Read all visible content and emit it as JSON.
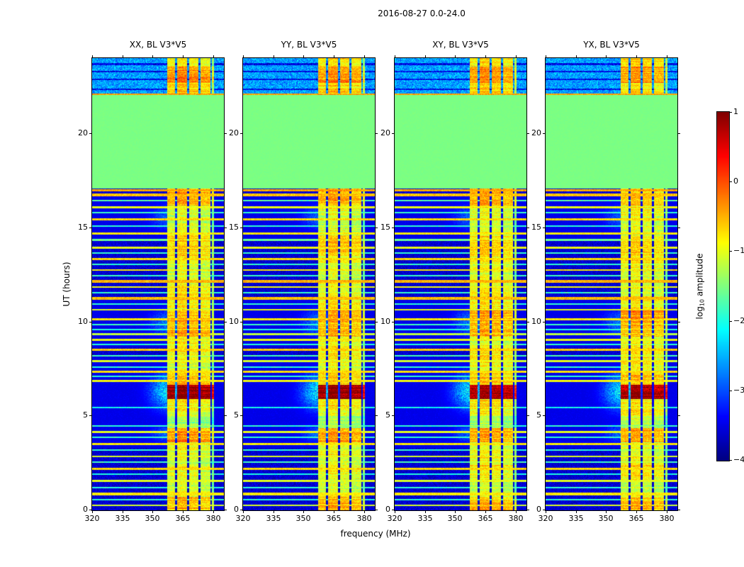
{
  "figure": {
    "title": "2016-08-27 0.0-24.0",
    "xlabel": "frequency (MHz)",
    "ylabel": "UT (hours)",
    "background": "#ffffff"
  },
  "chart_data": {
    "type": "heatmap",
    "title": "2016-08-27 0.0-24.0",
    "xlabel": "frequency (MHz)",
    "ylabel": "UT (hours)",
    "panels": [
      {
        "title": "XX, BL V3*V5",
        "seed": 101
      },
      {
        "title": "YY, BL V3*V5",
        "seed": 202
      },
      {
        "title": "XY, BL V3*V5",
        "seed": 303
      },
      {
        "title": "YX, BL V3*V5",
        "seed": 404
      }
    ],
    "x_axis": {
      "label": "frequency (MHz)",
      "min": 320,
      "max": 385,
      "ticks": [
        320,
        335,
        350,
        365,
        380
      ]
    },
    "y_axis": {
      "label": "UT (hours)",
      "min": 0,
      "max": 24,
      "ticks": [
        0,
        5,
        10,
        15,
        20
      ]
    },
    "colorbar": {
      "label": "log10 amplitude",
      "label_parts": {
        "prefix": "log",
        "sub": "10",
        "suffix": " amplitude"
      },
      "min": -4,
      "max": 1,
      "ticks": [
        1,
        0,
        -1,
        -2,
        -3,
        -4
      ],
      "colormap": "jet"
    },
    "model": {
      "background": {
        "level": -3.85,
        "noise": 0.5
      },
      "flagged_block": {
        "t0": 17.1,
        "t1": 22.05,
        "level": -1.52
      },
      "top_band": {
        "t0": 22.1,
        "t1": 24.0,
        "level": -2.6,
        "noise": 0.45,
        "dark_lines": [
          22.35,
          22.9,
          23.3,
          23.7
        ]
      },
      "rfi_columns": {
        "default_level": -1.05,
        "bands": [
          [
            357.2,
            361.0,
            0.0
          ],
          [
            362.0,
            366.8,
            0.15
          ],
          [
            367.8,
            372.6,
            0.05
          ],
          [
            373.6,
            378.4,
            -0.05
          ],
          [
            379.3,
            380.4,
            -0.5
          ]
        ],
        "time_profile": [
          [
            0.0,
            0.7,
            -0.7
          ],
          [
            0.7,
            1.6,
            -1.1
          ],
          [
            1.6,
            2.4,
            -0.9
          ],
          [
            2.4,
            3.6,
            -1.15
          ],
          [
            3.6,
            4.35,
            -0.45
          ],
          [
            4.35,
            5.0,
            -1.3
          ],
          [
            5.0,
            5.9,
            -1.0
          ],
          [
            5.9,
            6.65,
            0.8
          ],
          [
            6.65,
            7.3,
            -0.6
          ],
          [
            7.3,
            9.2,
            -1.05
          ],
          [
            9.2,
            10.6,
            -0.5
          ],
          [
            10.6,
            13.5,
            -1.0
          ],
          [
            13.5,
            14.6,
            -0.8
          ],
          [
            14.6,
            16.2,
            -1.05
          ],
          [
            16.2,
            17.1,
            -0.7
          ],
          [
            22.05,
            22.7,
            -0.85
          ],
          [
            22.7,
            23.55,
            -0.35
          ],
          [
            23.55,
            24.01,
            -0.75
          ]
        ]
      },
      "horizontal_lines": [
        [
          0.25,
          -1.1,
          0.05
        ],
        [
          0.55,
          -1.9,
          0.04
        ],
        [
          0.85,
          -0.8,
          0.06
        ],
        [
          1.2,
          -1.9,
          0.04
        ],
        [
          1.55,
          -1.0,
          0.05
        ],
        [
          1.9,
          -2.0,
          0.04
        ],
        [
          2.2,
          -0.7,
          0.06
        ],
        [
          2.55,
          -1.8,
          0.04
        ],
        [
          2.85,
          -1.05,
          0.05
        ],
        [
          3.2,
          -1.9,
          0.04
        ],
        [
          3.5,
          -0.8,
          0.06
        ],
        [
          3.85,
          -1.9,
          0.04
        ],
        [
          4.15,
          -1.0,
          0.05
        ],
        [
          4.45,
          -1.9,
          0.04
        ],
        [
          5.45,
          -2.05,
          0.04
        ],
        [
          6.85,
          -0.9,
          0.05
        ],
        [
          7.1,
          -1.9,
          0.04
        ],
        [
          7.35,
          -0.75,
          0.06
        ],
        [
          7.6,
          -1.9,
          0.04
        ],
        [
          7.9,
          -1.05,
          0.05
        ],
        [
          8.2,
          -1.8,
          0.04
        ],
        [
          8.5,
          -0.65,
          0.06
        ],
        [
          8.8,
          -1.9,
          0.04
        ],
        [
          9.05,
          -0.95,
          0.05
        ],
        [
          9.35,
          -1.2,
          0.05
        ],
        [
          9.6,
          -1.9,
          0.04
        ],
        [
          9.85,
          -1.85,
          0.04
        ],
        [
          10.15,
          -0.8,
          0.06
        ],
        [
          10.65,
          -1.0,
          0.05
        ],
        [
          10.95,
          -1.9,
          0.04
        ],
        [
          11.25,
          -0.55,
          0.07
        ],
        [
          11.55,
          -1.85,
          0.04
        ],
        [
          11.85,
          -0.95,
          0.05
        ],
        [
          12.15,
          -0.5,
          0.07
        ],
        [
          12.45,
          -1.85,
          0.04
        ],
        [
          12.75,
          -0.8,
          0.05
        ],
        [
          13.05,
          -1.9,
          0.04
        ],
        [
          13.35,
          -0.7,
          0.06
        ],
        [
          13.65,
          -1.85,
          0.04
        ],
        [
          13.95,
          -0.95,
          0.05
        ],
        [
          14.35,
          -1.6,
          0.05
        ],
        [
          14.7,
          -0.8,
          0.06
        ],
        [
          15.1,
          -1.9,
          0.04
        ],
        [
          15.45,
          -0.7,
          0.06
        ],
        [
          15.8,
          -1.85,
          0.04
        ],
        [
          16.1,
          -0.95,
          0.05
        ],
        [
          16.45,
          -1.7,
          0.04
        ],
        [
          16.75,
          -0.6,
          0.06
        ],
        [
          16.98,
          -0.45,
          0.06
        ],
        [
          22.08,
          -0.4,
          0.05
        ]
      ],
      "burst_halos": {
        "f_edge": 357.5,
        "f_sigma": 6.0,
        "events": [
          {
            "t": 6.3,
            "t_sigma": 0.65,
            "peak": 1.0
          },
          {
            "t": 4.05,
            "t_sigma": 0.3,
            "peak": 0.5
          },
          {
            "t": 9.95,
            "t_sigma": 0.5,
            "peak": 0.55
          },
          {
            "t": 15.55,
            "t_sigma": 0.45,
            "peak": 0.45
          }
        ]
      }
    }
  }
}
